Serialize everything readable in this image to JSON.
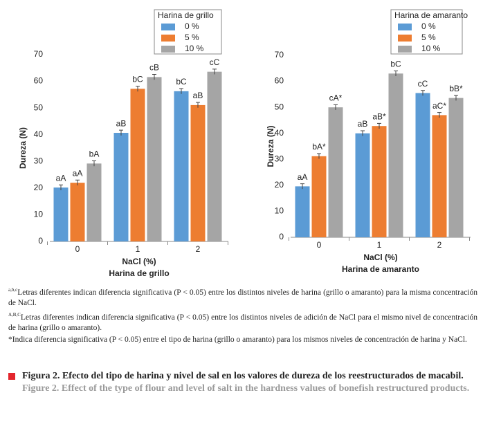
{
  "chart_data": [
    {
      "type": "bar",
      "legend_title": "Harina de grillo",
      "xlabel": "NaCl (%)",
      "subtitle": "Harina de grillo",
      "ylabel": "Dureza (N)",
      "categories": [
        "0",
        "1",
        "2"
      ],
      "ylim": [
        0,
        70
      ],
      "yticks": [
        0,
        10,
        20,
        30,
        40,
        50,
        60,
        70
      ],
      "series": [
        {
          "name": "0 %",
          "color": "#5b9bd5",
          "values": [
            20.2,
            40.7,
            56.3
          ],
          "errors": [
            1,
            1,
            1
          ],
          "annotations": [
            "aA",
            "aB",
            "bC"
          ]
        },
        {
          "name": "5 %",
          "color": "#ed7d31",
          "values": [
            22,
            57.2,
            51.1
          ],
          "errors": [
            1,
            1,
            1
          ],
          "annotations": [
            "aA",
            "bC",
            "aB"
          ]
        },
        {
          "name": "10 %",
          "color": "#a5a5a5",
          "values": [
            29.2,
            61.6,
            63.6
          ],
          "errors": [
            1,
            1,
            1
          ],
          "annotations": [
            "bA",
            "cB",
            "cC"
          ]
        }
      ]
    },
    {
      "type": "bar",
      "legend_title": "Harina de amaranto",
      "xlabel": "NaCl (%)",
      "subtitle": "Harina de amaranto",
      "ylabel": "Dureza (N)",
      "categories": [
        "0",
        "1",
        "2"
      ],
      "ylim": [
        0,
        70
      ],
      "yticks": [
        0,
        10,
        20,
        30,
        40,
        50,
        60,
        70
      ],
      "series": [
        {
          "name": "0 %",
          "color": "#5b9bd5",
          "values": [
            19.6,
            40,
            55.5
          ],
          "errors": [
            1,
            1,
            1
          ],
          "annotations": [
            "aA",
            "aB",
            "cC"
          ]
        },
        {
          "name": "5 %",
          "color": "#ed7d31",
          "values": [
            31.2,
            42.8,
            47
          ],
          "errors": [
            1,
            1,
            1
          ],
          "annotations": [
            "bA*",
            "aB*",
            "aC*"
          ]
        },
        {
          "name": "10 %",
          "color": "#a5a5a5",
          "values": [
            50,
            63,
            53.6
          ],
          "errors": [
            1,
            1,
            1
          ],
          "annotations": [
            "cA*",
            "bC",
            "bB*"
          ]
        }
      ]
    }
  ],
  "notes": [
    {
      "sup": "a,b,c",
      "text": "Letras diferentes indican diferencia significativa (P < 0.05) entre los distintos niveles de harina (grillo o amaranto) para la misma concentración de NaCl."
    },
    {
      "sup": "A,B,C",
      "text": "Letras diferentes indican diferencia significativa (P < 0.05) entre los distintos niveles de adición de NaCl para el mismo nivel de concentración de harina (grillo o amaranto)."
    },
    {
      "text": "*Indica diferencia significativa (P < 0.05) entre el tipo de harina (grillo o amaranto) para los mismos niveles de concentración de harina y NaCl."
    }
  ],
  "caption": {
    "es": "Figura 2. Efecto del tipo de harina y nivel de sal en los valores de dureza de los reestructurados de macabil.",
    "en": "Figure 2. Effect of the type of flour and level of salt in the hardness values of bonefish restructured products."
  }
}
